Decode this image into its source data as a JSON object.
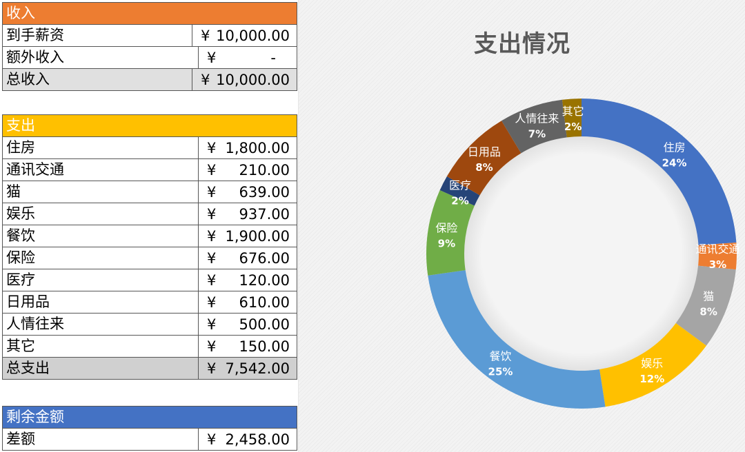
{
  "income": {
    "header": "收入",
    "rows": [
      {
        "label": "到手薪资",
        "currency": "¥",
        "amount": "10,000.00"
      },
      {
        "label": "额外收入",
        "currency": "¥",
        "amount": "-"
      }
    ],
    "total": {
      "label": "总收入",
      "currency": "¥",
      "amount": "10,000.00"
    }
  },
  "expense": {
    "header": "支出",
    "rows": [
      {
        "label": "住房",
        "currency": "¥",
        "amount": "1,800.00"
      },
      {
        "label": "通讯交通",
        "currency": "¥",
        "amount": "210.00"
      },
      {
        "label": "猫",
        "currency": "¥",
        "amount": "639.00"
      },
      {
        "label": "娱乐",
        "currency": "¥",
        "amount": "937.00"
      },
      {
        "label": "餐饮",
        "currency": "¥",
        "amount": "1,900.00"
      },
      {
        "label": "保险",
        "currency": "¥",
        "amount": "676.00"
      },
      {
        "label": "医疗",
        "currency": "¥",
        "amount": "120.00"
      },
      {
        "label": "日用品",
        "currency": "¥",
        "amount": "610.00"
      },
      {
        "label": "人情往来",
        "currency": "¥",
        "amount": "500.00"
      },
      {
        "label": "其它",
        "currency": "¥",
        "amount": "150.00"
      }
    ],
    "total": {
      "label": "总支出",
      "currency": "¥",
      "amount": "7,542.00"
    }
  },
  "balance": {
    "header": "剩余金额",
    "row": {
      "label": "差额",
      "currency": "¥",
      "amount": "2,458.00"
    }
  },
  "colors": {
    "income_header": "#ed7d31",
    "expense_header": "#ffc000",
    "balance_header": "#4472c4"
  },
  "chart_data": {
    "type": "pie",
    "title": "支出情况",
    "donut": true,
    "slices": [
      {
        "label": "住房",
        "value": 1800,
        "pct_label": "24%",
        "color": "#4472c4"
      },
      {
        "label": "通讯交通",
        "value": 210,
        "pct_label": "3%",
        "color": "#ed7d31"
      },
      {
        "label": "猫",
        "value": 639,
        "pct_label": "8%",
        "color": "#a5a5a5"
      },
      {
        "label": "娱乐",
        "value": 937,
        "pct_label": "12%",
        "color": "#ffc000"
      },
      {
        "label": "餐饮",
        "value": 1900,
        "pct_label": "25%",
        "color": "#5b9bd5"
      },
      {
        "label": "保险",
        "value": 676,
        "pct_label": "9%",
        "color": "#70ad47"
      },
      {
        "label": "医疗",
        "value": 120,
        "pct_label": "2%",
        "color": "#264478"
      },
      {
        "label": "日用品",
        "value": 610,
        "pct_label": "8%",
        "color": "#9e480e"
      },
      {
        "label": "人情往来",
        "value": 500,
        "pct_label": "7%",
        "color": "#636363"
      },
      {
        "label": "其它",
        "value": 150,
        "pct_label": "2%",
        "color": "#997300"
      }
    ]
  }
}
